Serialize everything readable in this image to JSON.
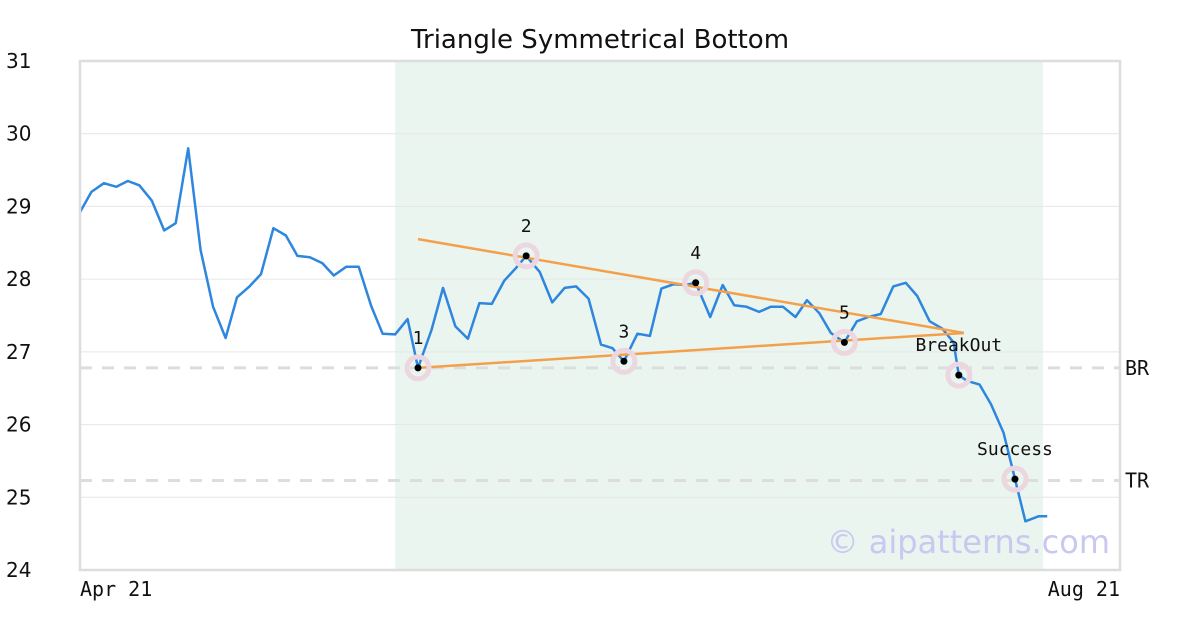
{
  "chart_data": {
    "type": "line",
    "title": "Triangle Symmetrical Bottom",
    "xlabel": "",
    "ylabel": "",
    "ylim": [
      24,
      31
    ],
    "x_range": [
      0,
      100
    ],
    "yticks": [
      24,
      25,
      26,
      27,
      28,
      29,
      30,
      31
    ],
    "xticks": [
      {
        "label": "Apr 21",
        "x": 0
      },
      {
        "label": "Aug 21",
        "x": 100
      }
    ],
    "grid": "horizontal",
    "colors": {
      "series": "#2e86de",
      "trendlines": "#f4a04a",
      "highlight": "#eaf5f0",
      "points_ring": "#ecd6e0",
      "points_dot": "#000000",
      "levels": "#dddddd",
      "frame": "#dddddd"
    },
    "highlight_region": {
      "x_start": 30.3,
      "x_end": 92.6
    },
    "series": [
      {
        "values": [
          [
            0,
            28.92
          ],
          [
            1.1,
            29.2
          ],
          [
            2.3,
            29.32
          ],
          [
            3.5,
            29.27
          ],
          [
            4.6,
            29.35
          ],
          [
            5.7,
            29.29
          ],
          [
            6.9,
            29.08
          ],
          [
            8.1,
            28.67
          ],
          [
            9.2,
            28.77
          ],
          [
            10.4,
            29.8
          ],
          [
            11.6,
            28.4
          ],
          [
            12.8,
            27.62
          ],
          [
            14.0,
            27.19
          ],
          [
            15.1,
            27.75
          ],
          [
            16.3,
            27.9
          ],
          [
            17.4,
            28.07
          ],
          [
            18.6,
            28.7
          ],
          [
            19.8,
            28.6
          ],
          [
            20.9,
            28.32
          ],
          [
            22.1,
            28.3
          ],
          [
            23.3,
            28.22
          ],
          [
            24.4,
            28.05
          ],
          [
            25.6,
            28.17
          ],
          [
            26.8,
            28.17
          ],
          [
            28.0,
            27.63
          ],
          [
            29.1,
            27.25
          ],
          [
            30.3,
            27.24
          ],
          [
            31.5,
            27.45
          ],
          [
            32.5,
            26.78
          ],
          [
            33.8,
            27.3
          ],
          [
            34.9,
            27.88
          ],
          [
            36.1,
            27.35
          ],
          [
            37.3,
            27.18
          ],
          [
            38.4,
            27.67
          ],
          [
            39.6,
            27.66
          ],
          [
            40.8,
            27.98
          ],
          [
            41.9,
            28.15
          ],
          [
            42.9,
            28.32
          ],
          [
            44.2,
            28.1
          ],
          [
            45.4,
            27.68
          ],
          [
            46.6,
            27.88
          ],
          [
            47.7,
            27.9
          ],
          [
            48.9,
            27.73
          ],
          [
            50.1,
            27.1
          ],
          [
            51.2,
            27.05
          ],
          [
            52.3,
            26.87
          ],
          [
            53.6,
            27.25
          ],
          [
            54.8,
            27.22
          ],
          [
            55.9,
            27.87
          ],
          [
            57.1,
            27.93
          ],
          [
            58.2,
            27.92
          ],
          [
            59.2,
            27.95
          ],
          [
            60.6,
            27.48
          ],
          [
            61.8,
            27.92
          ],
          [
            62.9,
            27.64
          ],
          [
            64.1,
            27.62
          ],
          [
            65.3,
            27.55
          ],
          [
            66.4,
            27.62
          ],
          [
            67.6,
            27.62
          ],
          [
            68.8,
            27.48
          ],
          [
            69.9,
            27.71
          ],
          [
            71.1,
            27.53
          ],
          [
            72.2,
            27.26
          ],
          [
            73.5,
            27.13
          ],
          [
            74.7,
            27.42
          ],
          [
            75.8,
            27.48
          ],
          [
            77.0,
            27.52
          ],
          [
            78.2,
            27.9
          ],
          [
            79.4,
            27.95
          ],
          [
            80.5,
            27.77
          ],
          [
            81.7,
            27.42
          ],
          [
            82.9,
            27.32
          ],
          [
            84.0,
            27.13
          ],
          [
            84.5,
            26.68
          ],
          [
            85.3,
            26.6
          ],
          [
            86.5,
            26.55
          ],
          [
            87.6,
            26.28
          ],
          [
            88.8,
            25.89
          ],
          [
            89.9,
            25.25
          ],
          [
            90.9,
            24.67
          ],
          [
            92.2,
            24.74
          ],
          [
            93.0,
            24.74
          ]
        ]
      }
    ],
    "trendlines": [
      {
        "from": [
          32.5,
          28.55
        ],
        "to": [
          85.0,
          27.26
        ]
      },
      {
        "from": [
          32.5,
          26.78
        ],
        "to": [
          85.0,
          27.26
        ]
      }
    ],
    "points": [
      {
        "label": "1",
        "x": 32.5,
        "y": 26.78
      },
      {
        "label": "2",
        "x": 42.9,
        "y": 28.32
      },
      {
        "label": "3",
        "x": 52.3,
        "y": 26.87
      },
      {
        "label": "4",
        "x": 59.2,
        "y": 27.95
      },
      {
        "label": "5",
        "x": 73.5,
        "y": 27.13
      },
      {
        "label": "BreakOut",
        "x": 84.5,
        "y": 26.68
      },
      {
        "label": "Success",
        "x": 89.9,
        "y": 25.25
      }
    ],
    "levels": [
      {
        "label": "BR",
        "y": 26.78
      },
      {
        "label": "TR",
        "y": 25.23
      }
    ],
    "watermark": "© aipatterns.com"
  }
}
